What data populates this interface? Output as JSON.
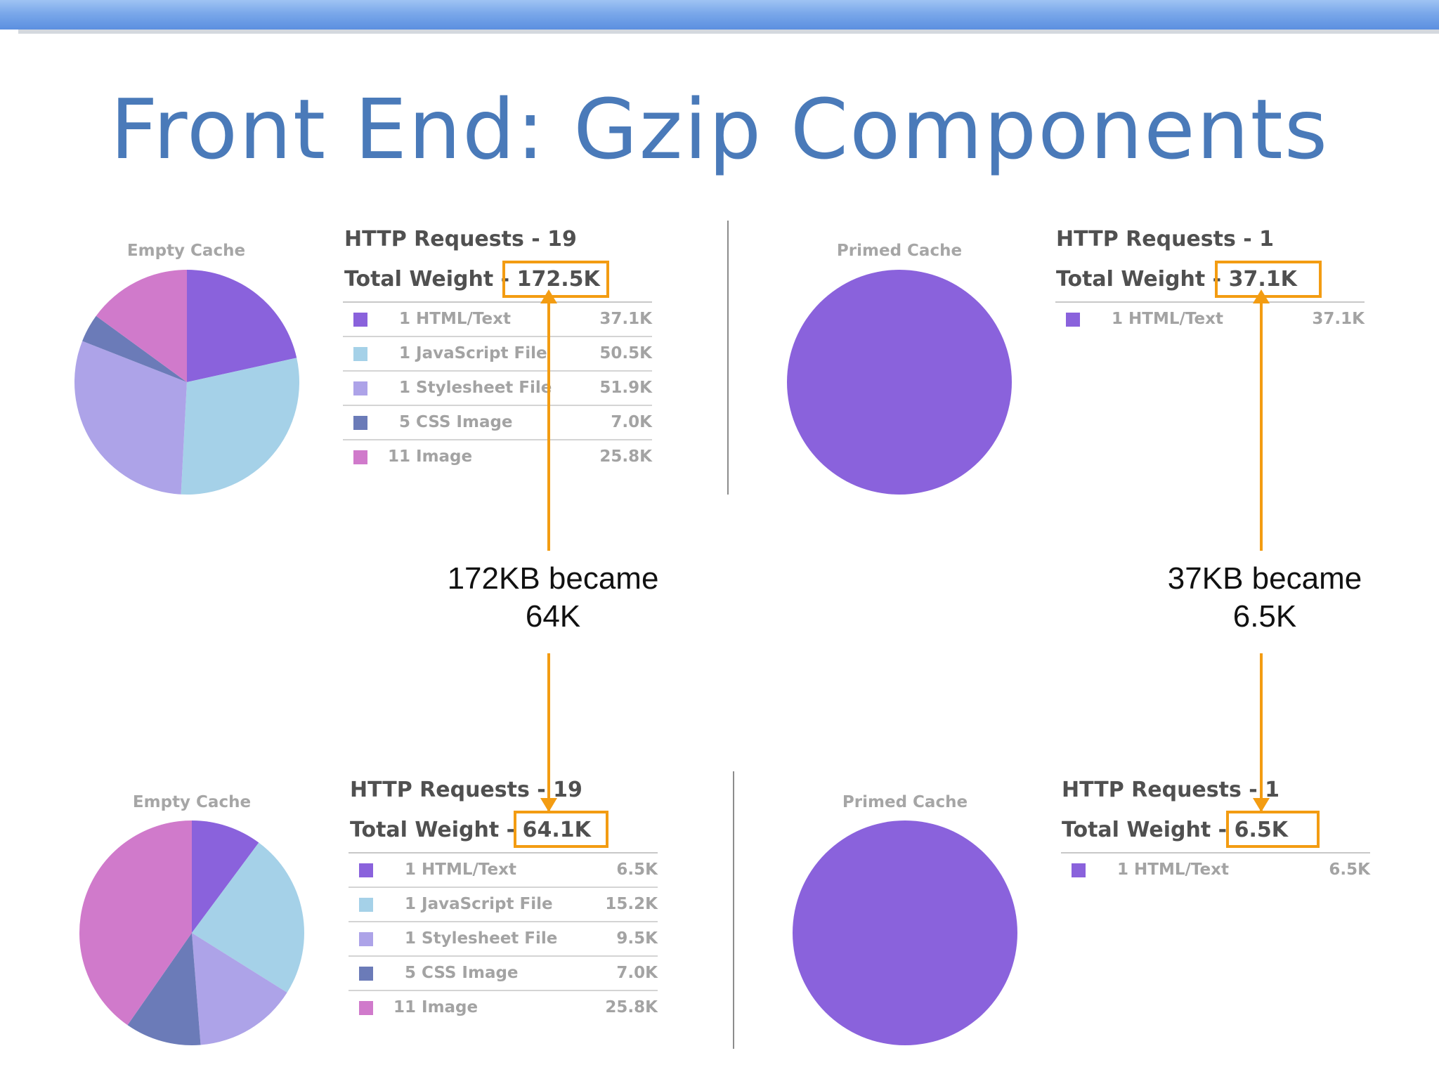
{
  "slide": {
    "title": "Front End: Gzip Components"
  },
  "notes": [
    {
      "line1": "172KB became",
      "line2": "64K"
    },
    {
      "line1": "37KB became",
      "line2": "6.5K"
    }
  ],
  "colors": {
    "html": "#8a62dc",
    "js": "#a5d1e8",
    "css": "#ada3e8",
    "cssimg": "#6b7bb8",
    "img": "#d07acb",
    "highlight": "#f39c12",
    "title": "#4a7ab9"
  },
  "chart_data": [
    {
      "type": "pie",
      "title": "Empty Cache",
      "requests_label": "HTTP Requests - 19",
      "weight_prefix": "Total Weight - ",
      "weight": "172.5K",
      "rows": [
        {
          "label": "1 HTML/Text",
          "value": "37.1K"
        },
        {
          "label": "1 JavaScript File",
          "value": "50.5K"
        },
        {
          "label": "1 Stylesheet File",
          "value": "51.9K"
        },
        {
          "label": "5 CSS Image",
          "value": "7.0K"
        },
        {
          "label": "11 Image",
          "value": "25.8K"
        }
      ],
      "series": [
        {
          "name": "1 HTML/Text",
          "value": 37.1,
          "color": "#8a62dc"
        },
        {
          "name": "1 JavaScript File",
          "value": 50.5,
          "color": "#a5d1e8"
        },
        {
          "name": "1 Stylesheet File",
          "value": 51.9,
          "color": "#ada3e8"
        },
        {
          "name": "5 CSS Image",
          "value": 7.0,
          "color": "#6b7bb8"
        },
        {
          "name": "11 Image",
          "value": 25.8,
          "color": "#d07acb"
        }
      ]
    },
    {
      "type": "pie",
      "title": "Primed Cache",
      "requests_label": "HTTP Requests - 1",
      "weight_prefix": "Total Weight - ",
      "weight": "37.1K",
      "rows": [
        {
          "label": "1 HTML/Text",
          "value": "37.1K"
        }
      ],
      "series": [
        {
          "name": "1 HTML/Text",
          "value": 37.1,
          "color": "#8a62dc"
        }
      ]
    },
    {
      "type": "pie",
      "title": "Empty Cache",
      "requests_label": "HTTP Requests - 19",
      "weight_prefix": "Total Weight - ",
      "weight": "64.1K",
      "rows": [
        {
          "label": "1 HTML/Text",
          "value": "6.5K"
        },
        {
          "label": "1 JavaScript File",
          "value": "15.2K"
        },
        {
          "label": "1 Stylesheet File",
          "value": "9.5K"
        },
        {
          "label": "5 CSS Image",
          "value": "7.0K"
        },
        {
          "label": "11 Image",
          "value": "25.8K"
        }
      ],
      "series": [
        {
          "name": "1 HTML/Text",
          "value": 6.5,
          "color": "#8a62dc"
        },
        {
          "name": "1 JavaScript File",
          "value": 15.2,
          "color": "#a5d1e8"
        },
        {
          "name": "1 Stylesheet File",
          "value": 9.5,
          "color": "#ada3e8"
        },
        {
          "name": "5 CSS Image",
          "value": 7.0,
          "color": "#6b7bb8"
        },
        {
          "name": "11 Image",
          "value": 25.8,
          "color": "#d07acb"
        }
      ]
    },
    {
      "type": "pie",
      "title": "Primed Cache",
      "requests_label": "HTTP Requests - 1",
      "weight_prefix": "Total Weight - ",
      "weight": "6.5K",
      "rows": [
        {
          "label": "1 HTML/Text",
          "value": "6.5K"
        }
      ],
      "series": [
        {
          "name": "1 HTML/Text",
          "value": 6.5,
          "color": "#8a62dc"
        }
      ]
    }
  ]
}
